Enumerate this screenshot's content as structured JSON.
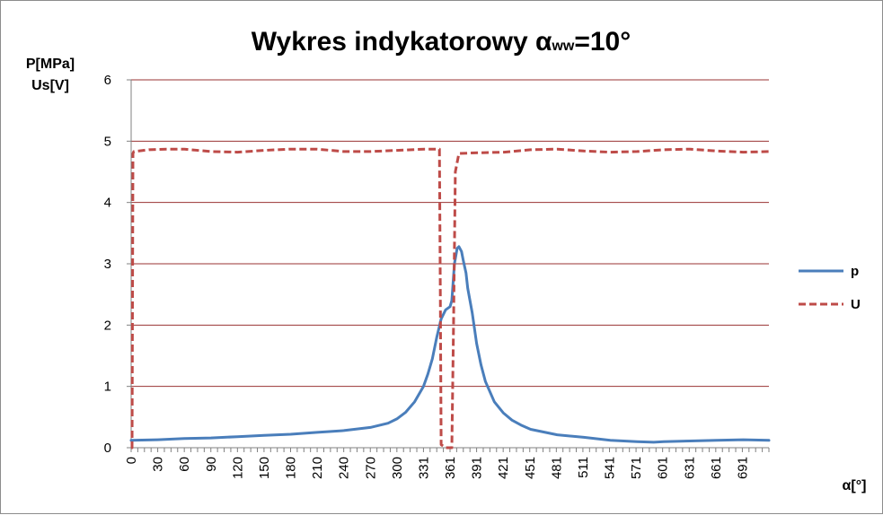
{
  "chart_data": {
    "type": "line",
    "title": {
      "main": "Wykres  indykatorowy α",
      "subscript": "ww",
      "suffix": "=10°"
    },
    "ylabel": [
      "P[MPa]",
      "Us[V]"
    ],
    "xlabel": "α[°]",
    "ylim": [
      0,
      6
    ],
    "yticks": [
      0,
      1,
      2,
      3,
      4,
      5,
      6
    ],
    "xlim": [
      0,
      720
    ],
    "xticks": [
      0,
      30,
      60,
      90,
      120,
      150,
      180,
      210,
      240,
      270,
      300,
      331,
      361,
      391,
      421,
      451,
      481,
      511,
      541,
      571,
      601,
      631,
      661,
      691
    ],
    "grid": "horizontal",
    "legend_position": "right",
    "colors": {
      "p": "#4a7ebb",
      "U": "#be4b48",
      "grid": "#993333"
    },
    "series": [
      {
        "name": "p",
        "style": "solid",
        "x": [
          0,
          30,
          60,
          90,
          120,
          150,
          180,
          210,
          240,
          270,
          290,
          300,
          310,
          320,
          330,
          335,
          340,
          345,
          350,
          355,
          360,
          362,
          365,
          368,
          370,
          373,
          375,
          378,
          380,
          385,
          390,
          395,
          400,
          410,
          420,
          430,
          440,
          451,
          481,
          511,
          541,
          571,
          590,
          601,
          631,
          661,
          691,
          720
        ],
        "y": [
          0.12,
          0.13,
          0.15,
          0.16,
          0.18,
          0.2,
          0.22,
          0.25,
          0.28,
          0.33,
          0.4,
          0.47,
          0.58,
          0.75,
          1.0,
          1.2,
          1.45,
          1.8,
          2.1,
          2.25,
          2.3,
          2.4,
          3.0,
          3.25,
          3.28,
          3.2,
          3.05,
          2.85,
          2.6,
          2.2,
          1.7,
          1.35,
          1.08,
          0.75,
          0.57,
          0.45,
          0.37,
          0.3,
          0.21,
          0.17,
          0.12,
          0.1,
          0.09,
          0.1,
          0.11,
          0.12,
          0.13,
          0.12
        ]
      },
      {
        "name": "U",
        "style": "dashed",
        "x": [
          0,
          1,
          2,
          3,
          20,
          40,
          60,
          90,
          120,
          150,
          180,
          210,
          240,
          270,
          300,
          331,
          348,
          349,
          350,
          355,
          358,
          360,
          362,
          364,
          366,
          370,
          391,
          421,
          451,
          481,
          511,
          541,
          571,
          601,
          631,
          661,
          691,
          720
        ],
        "y": [
          0,
          0,
          4.8,
          4.83,
          4.86,
          4.87,
          4.87,
          4.83,
          4.82,
          4.85,
          4.87,
          4.87,
          4.83,
          4.83,
          4.85,
          4.87,
          4.87,
          2.5,
          0.05,
          0.0,
          0.0,
          0.0,
          0.0,
          2.0,
          4.5,
          4.8,
          4.81,
          4.82,
          4.86,
          4.87,
          4.84,
          4.82,
          4.83,
          4.86,
          4.87,
          4.84,
          4.82,
          4.83
        ]
      }
    ]
  }
}
